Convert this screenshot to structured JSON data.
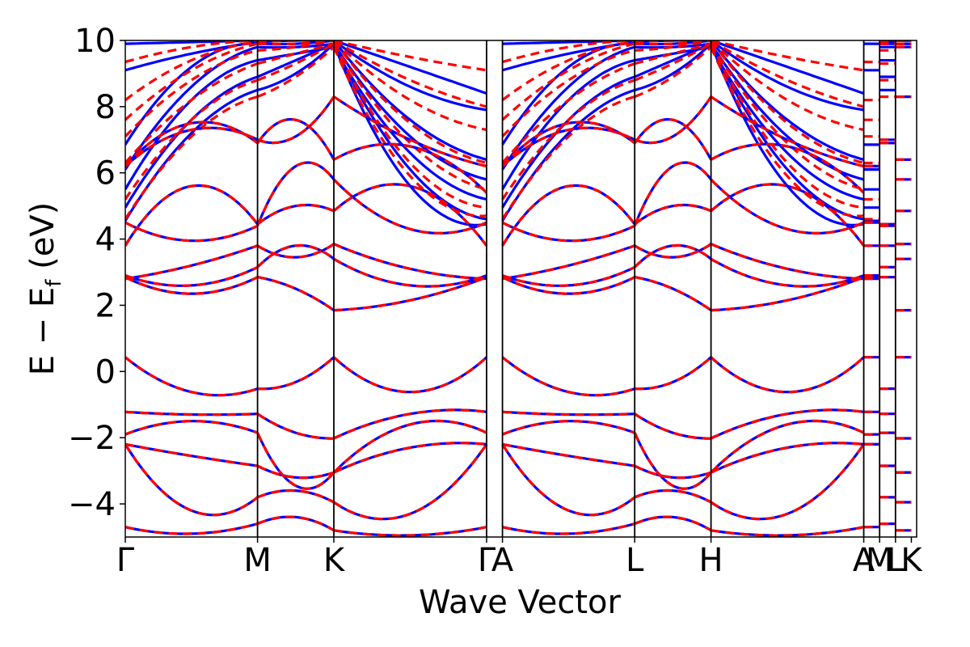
{
  "chart_data": {
    "type": "line",
    "title": "",
    "xlabel": "Wave Vector",
    "ylabel": "E − E",
    "ylabel_sub": "f",
    "ylabel_unit": " (eV)",
    "ylim": [
      -5,
      10
    ],
    "yticks": [
      {
        "value": -4,
        "label": "−4"
      },
      {
        "value": -2,
        "label": "−2"
      },
      {
        "value": 0,
        "label": "0"
      },
      {
        "value": 2,
        "label": "2"
      },
      {
        "value": 4,
        "label": "4"
      },
      {
        "value": 6,
        "label": "6"
      },
      {
        "value": 8,
        "label": "8"
      },
      {
        "value": 10,
        "label": "10"
      }
    ],
    "xlim": [
      0,
      5.984
    ],
    "kpoints": [
      {
        "label": "Γ",
        "x": 0.0
      },
      {
        "label": "M",
        "x": 1.0
      },
      {
        "label": "K",
        "x": 1.577
      },
      {
        "label": "Γ",
        "x": 2.732
      },
      {
        "label": "A",
        "x": 2.852
      },
      {
        "label": "L",
        "x": 3.852
      },
      {
        "label": "H",
        "x": 4.429
      },
      {
        "label": "A",
        "x": 5.584
      },
      {
        "label": "M",
        "x": 5.704
      },
      {
        "label": "L",
        "x": 5.824
      },
      {
        "label": "K",
        "x": 5.944
      }
    ],
    "grid": false,
    "legend": "none",
    "series_styles": [
      {
        "color": "#0000ff",
        "dash": "solid"
      },
      {
        "color": "#ff0000",
        "dash": "dashed"
      }
    ],
    "common_bands": [
      {
        "nodes": [
          0.43,
          -0.52,
          0.43,
          0.43
        ],
        "dips": [
          -0.62,
          -0.32,
          -0.62
        ]
      },
      {
        "nodes": [
          -1.22,
          -1.28,
          -2.02,
          -1.22
        ],
        "dips": [
          -1.3,
          -1.85,
          -1.28
        ]
      },
      {
        "nodes": [
          -1.9,
          -1.85,
          -3.05,
          -1.85
        ],
        "dips": [
          -1.5,
          -3.45,
          -1.6
        ]
      },
      {
        "nodes": [
          -2.2,
          -2.85,
          -3.05,
          -2.2
        ],
        "dips": [
          -2.55,
          -3.2,
          -2.3
        ]
      },
      {
        "nodes": [
          -2.2,
          -3.8,
          -3.95,
          -2.2
        ],
        "dips": [
          -4.2,
          -3.6,
          -4.3
        ]
      },
      {
        "nodes": [
          -4.7,
          -4.6,
          -4.8,
          -4.7
        ],
        "dips": [
          -4.9,
          -4.4,
          -4.95
        ]
      },
      {
        "nodes": [
          2.85,
          2.85,
          1.85,
          2.85
        ],
        "dips": [
          2.35,
          2.5,
          2.15
        ]
      },
      {
        "nodes": [
          2.9,
          3.15,
          3.4,
          2.9
        ],
        "dips": [
          2.6,
          3.8,
          2.6
        ]
      },
      {
        "nodes": [
          2.8,
          3.8,
          3.85,
          2.8
        ],
        "dips": [
          3.2,
          3.45,
          3.1
        ]
      },
      {
        "nodes": [
          3.8,
          4.45,
          4.85,
          3.8
        ],
        "dips": [
          5.6,
          5.0,
          5.6
        ]
      },
      {
        "nodes": [
          4.5,
          4.4,
          5.8,
          4.5
        ],
        "dips": [
          3.95,
          6.2,
          4.3
        ]
      },
      {
        "nodes": [
          6.2,
          6.9,
          6.4,
          5.4
        ],
        "dips": [
          7.5,
          7.6,
          6.8
        ]
      },
      {
        "nodes": [
          6.2,
          7.0,
          8.3,
          6.2
        ],
        "dips": [
          7.3,
          7.1,
          7.0
        ]
      }
    ],
    "upper_bands_solid": [
      {
        "nodes": [
          4.55,
          8.5,
          9.9,
          4.45
        ],
        "dips": [
          7.2,
          9.0,
          5.6
        ]
      },
      {
        "nodes": [
          4.95,
          8.9,
          9.9,
          4.6
        ],
        "dips": [
          7.6,
          9.4,
          6.1
        ]
      },
      {
        "nodes": [
          5.5,
          9.4,
          9.8,
          5.2
        ],
        "dips": [
          8.2,
          9.6,
          6.6
        ]
      },
      {
        "nodes": [
          6.1,
          9.8,
          9.9,
          5.8
        ],
        "dips": [
          8.6,
          9.8,
          7.1
        ]
      },
      {
        "nodes": [
          6.85,
          9.9,
          10.0,
          6.4
        ],
        "dips": [
          9.2,
          9.9,
          7.6
        ]
      },
      {
        "nodes": [
          9.1,
          9.95,
          10.0,
          7.9
        ],
        "dips": [
          9.6,
          10.0,
          8.6
        ]
      },
      {
        "nodes": [
          9.9,
          10.0,
          10.0,
          8.4
        ],
        "dips": [
          9.95,
          10.0,
          9.2
        ]
      }
    ],
    "upper_bands_dashed": [
      {
        "nodes": [
          4.6,
          8.3,
          9.8,
          4.7
        ],
        "dips": [
          7.1,
          8.9,
          5.9
        ]
      },
      {
        "nodes": [
          5.2,
          8.8,
          9.9,
          4.95
        ],
        "dips": [
          7.6,
          9.3,
          6.3
        ]
      },
      {
        "nodes": [
          6.3,
          9.3,
          9.9,
          5.5
        ],
        "dips": [
          8.2,
          9.6,
          6.9
        ]
      },
      {
        "nodes": [
          7.1,
          9.7,
          10.0,
          6.3
        ],
        "dips": [
          8.8,
          9.8,
          7.5
        ]
      },
      {
        "nodes": [
          7.6,
          9.9,
          10.0,
          7.3
        ],
        "dips": [
          9.1,
          9.9,
          8.2
        ]
      },
      {
        "nodes": [
          8.2,
          9.95,
          10.0,
          8.0
        ],
        "dips": [
          9.4,
          10.0,
          8.8
        ]
      },
      {
        "nodes": [
          9.35,
          10.0,
          10.0,
          9.1
        ],
        "dips": [
          9.8,
          10.0,
          9.5
        ]
      }
    ]
  }
}
